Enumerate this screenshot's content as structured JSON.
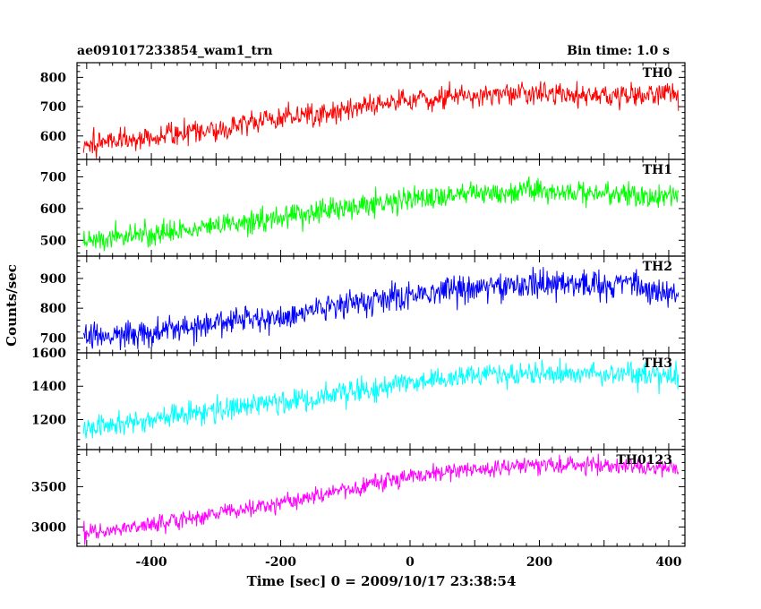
{
  "chart_data": {
    "type": "line",
    "title": "ae091017233854_wam1_trn",
    "bin_time_label": "Bin time: 1.0 s",
    "xlabel": "Time [sec] 0 = 2009/10/17 23:38:54",
    "ylabel": "Counts/sec",
    "xlim": [
      -515,
      425
    ],
    "xticks": [
      -400,
      -200,
      0,
      200,
      400
    ],
    "x_data_range": [
      -505,
      415
    ],
    "panels": [
      {
        "name": "TH0",
        "color": "#ff0000",
        "ylim": [
          520,
          850
        ],
        "yticks": [
          600,
          700,
          800
        ],
        "trend": [
          [
            -505,
            570
          ],
          [
            -400,
            600
          ],
          [
            -300,
            625
          ],
          [
            -200,
            660
          ],
          [
            -100,
            690
          ],
          [
            0,
            725
          ],
          [
            100,
            740
          ],
          [
            200,
            745
          ],
          [
            300,
            740
          ],
          [
            415,
            738
          ]
        ],
        "noise": 28
      },
      {
        "name": "TH1",
        "color": "#00ff00",
        "ylim": [
          450,
          755
        ],
        "yticks": [
          500,
          600,
          700
        ],
        "trend": [
          [
            -505,
            500
          ],
          [
            -400,
            520
          ],
          [
            -300,
            545
          ],
          [
            -200,
            575
          ],
          [
            -100,
            605
          ],
          [
            0,
            630
          ],
          [
            100,
            645
          ],
          [
            200,
            655
          ],
          [
            300,
            650
          ],
          [
            415,
            640
          ]
        ],
        "noise": 27
      },
      {
        "name": "TH2",
        "color": "#0000ff",
        "ylim": [
          650,
          975
        ],
        "yticks": [
          700,
          800,
          900
        ],
        "trend": [
          [
            -505,
            705
          ],
          [
            -400,
            720
          ],
          [
            -300,
            745
          ],
          [
            -200,
            775
          ],
          [
            -100,
            810
          ],
          [
            0,
            845
          ],
          [
            100,
            870
          ],
          [
            200,
            880
          ],
          [
            300,
            880
          ],
          [
            350,
            885
          ],
          [
            360,
            850
          ],
          [
            415,
            850
          ]
        ],
        "noise": 33
      },
      {
        "name": "TH3",
        "color": "#00ffff",
        "ylim": [
          1020,
          1600
        ],
        "yticks": [
          1200,
          1400,
          1600
        ],
        "trend": [
          [
            -505,
            1140
          ],
          [
            -400,
            1200
          ],
          [
            -300,
            1255
          ],
          [
            -200,
            1310
          ],
          [
            -100,
            1365
          ],
          [
            0,
            1420
          ],
          [
            100,
            1460
          ],
          [
            200,
            1480
          ],
          [
            300,
            1475
          ],
          [
            415,
            1460
          ]
        ],
        "noise": 50
      },
      {
        "name": "TH0123",
        "color": "#ff00ff",
        "ylim": [
          2760,
          3960
        ],
        "yticks": [
          3000,
          3500
        ],
        "trend": [
          [
            -505,
            2920
          ],
          [
            -400,
            3030
          ],
          [
            -300,
            3160
          ],
          [
            -200,
            3310
          ],
          [
            -100,
            3460
          ],
          [
            0,
            3620
          ],
          [
            100,
            3720
          ],
          [
            200,
            3775
          ],
          [
            300,
            3770
          ],
          [
            415,
            3720
          ]
        ],
        "noise": 75
      }
    ]
  }
}
